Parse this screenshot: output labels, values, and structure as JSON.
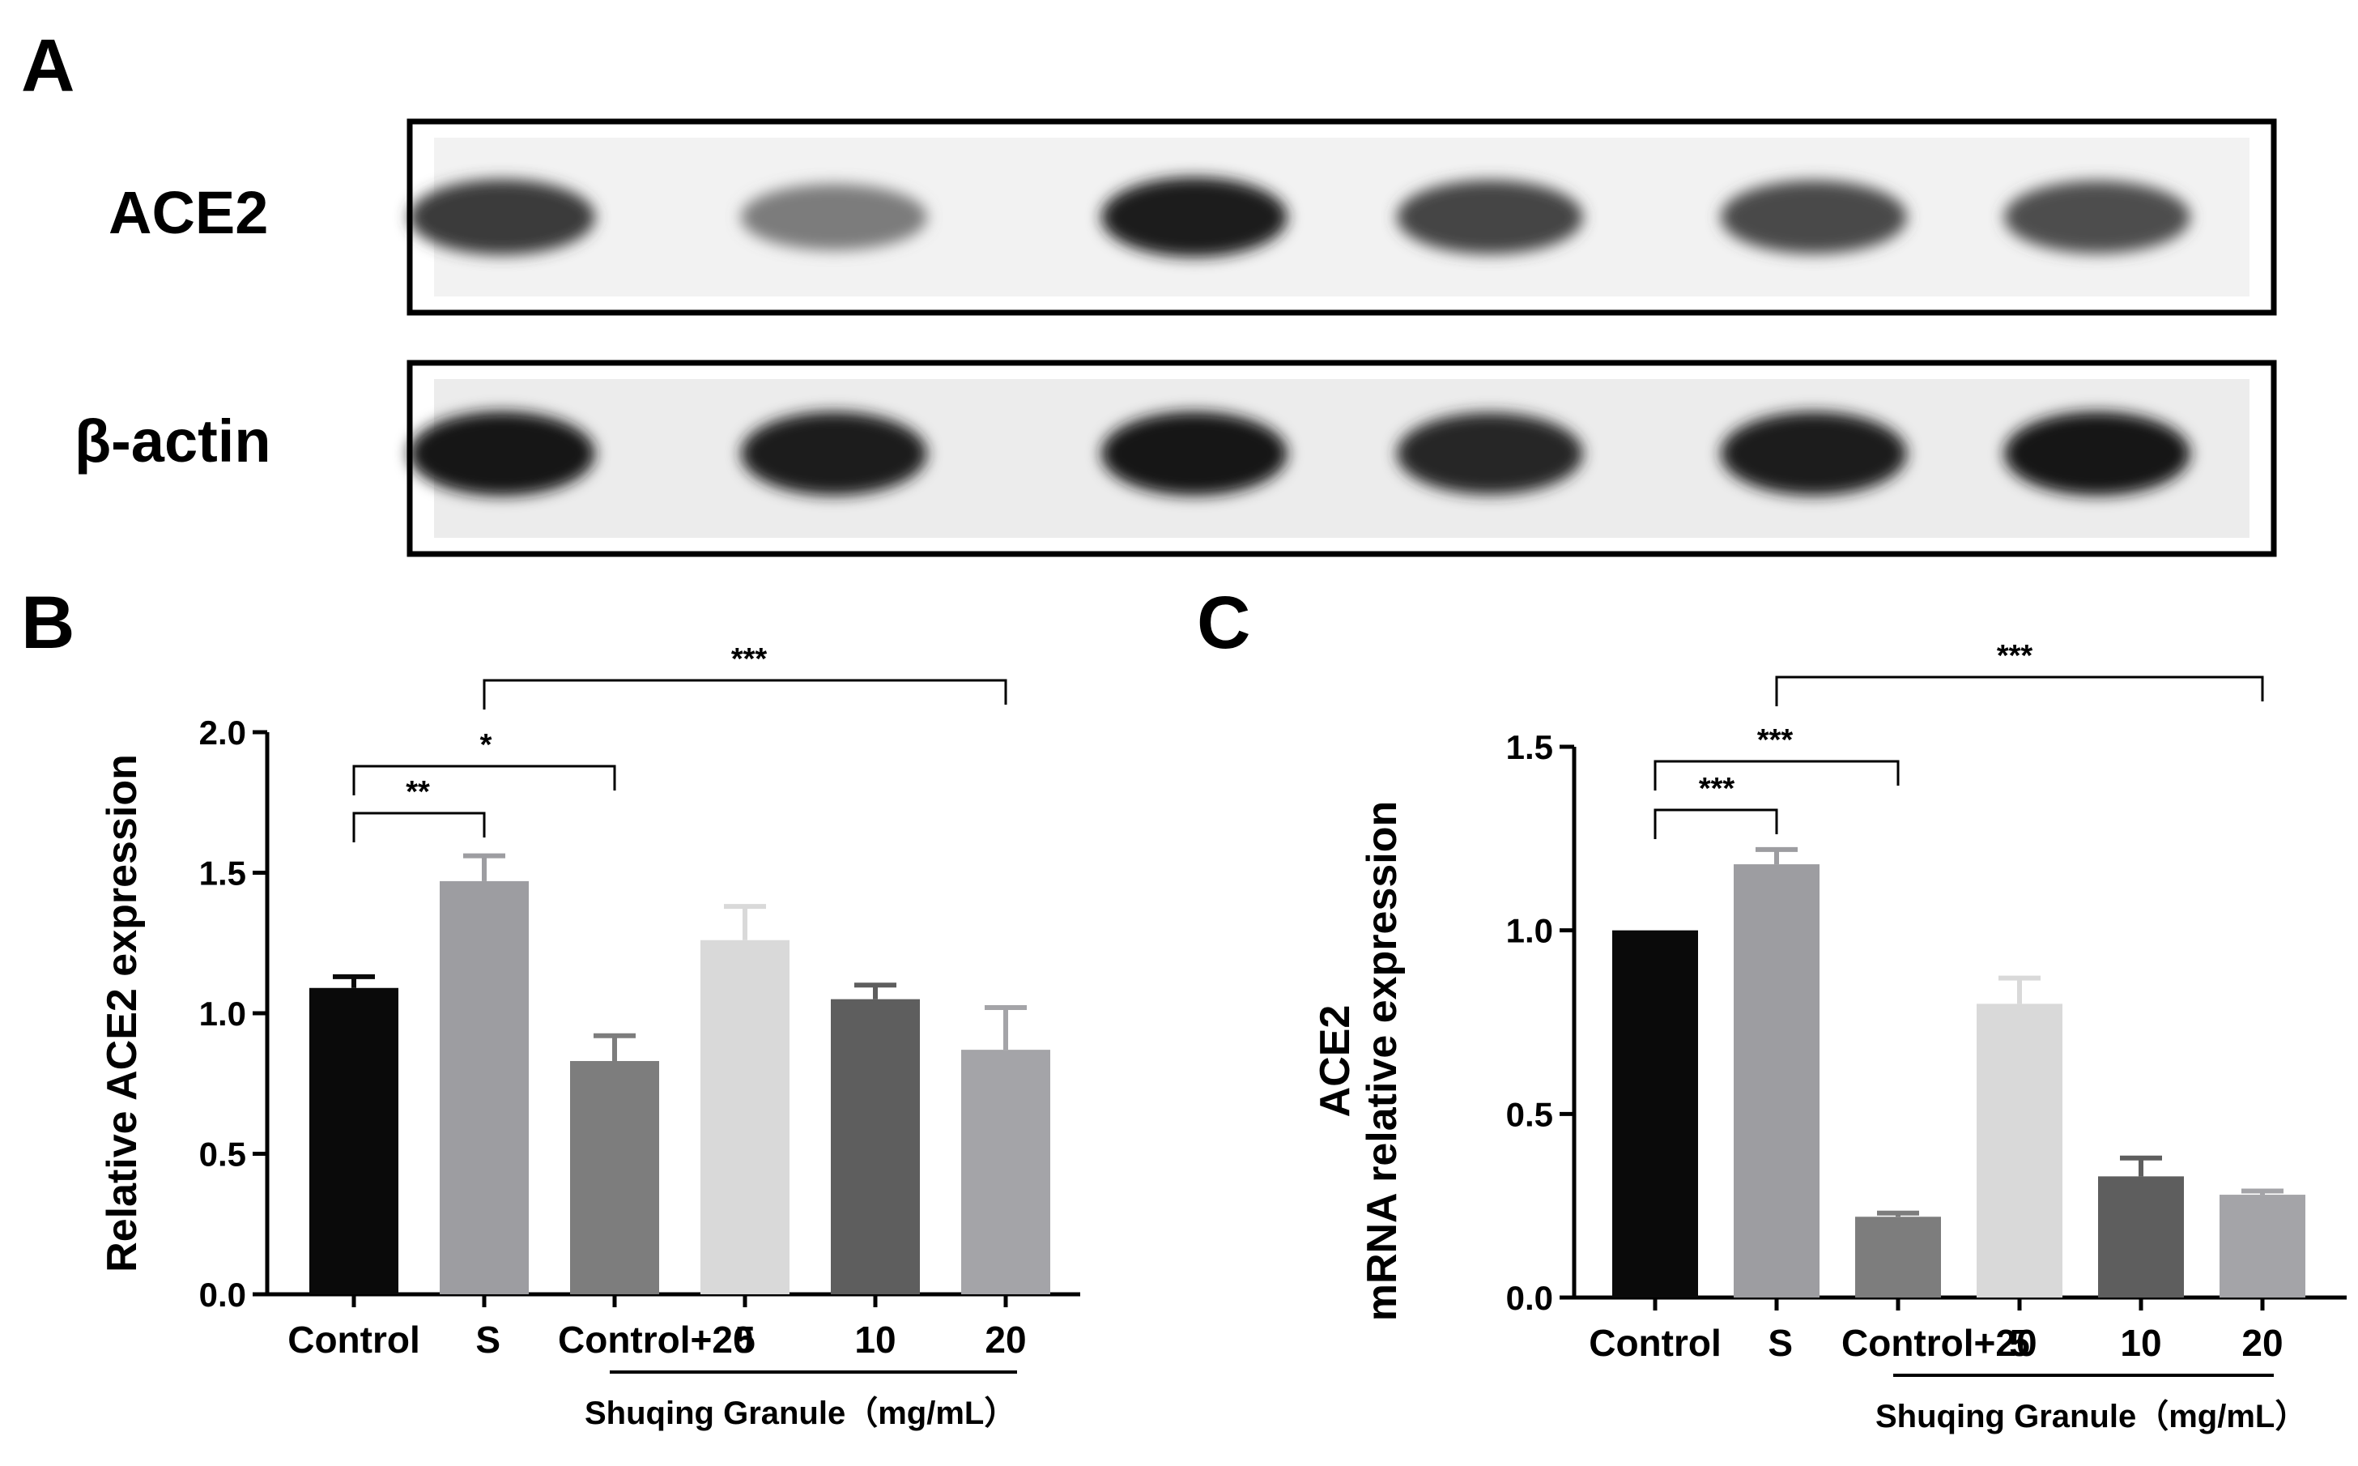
{
  "panels": {
    "a": "A",
    "b": "B",
    "c": "C"
  },
  "blot": {
    "rows": [
      {
        "label": "ACE2",
        "band_intensity": [
          0.82,
          0.55,
          0.95,
          0.78,
          0.76,
          0.74
        ]
      },
      {
        "label": "β-actin",
        "band_intensity": [
          0.97,
          0.95,
          0.96,
          0.9,
          0.95,
          0.96
        ]
      }
    ]
  },
  "chart_data": [
    {
      "type": "bar",
      "panel": "B",
      "categories": [
        "Control",
        "S",
        "Control+20",
        "5",
        "10",
        "20"
      ],
      "values": [
        1.09,
        1.47,
        0.83,
        1.26,
        1.05,
        0.87
      ],
      "errors": [
        0.04,
        0.09,
        0.09,
        0.12,
        0.05,
        0.15
      ],
      "colors": [
        "#0a0a0a",
        "#9d9da1",
        "#7d7d7d",
        "#d9d9d9",
        "#5e5e5e",
        "#a4a4a8"
      ],
      "ylabel": "Relative ACE2 expression",
      "ylim": [
        0,
        2.0
      ],
      "yticks": [
        "0.0",
        "0.5",
        "1.0",
        "1.5",
        "2.0"
      ],
      "group_label": "Shuqing Granule（mg/mL）",
      "significance": [
        {
          "from": 0,
          "to": 1,
          "label": "**"
        },
        {
          "from": 0,
          "to": 2,
          "label": "*"
        },
        {
          "from": 1,
          "to": 5,
          "label": "***"
        }
      ]
    },
    {
      "type": "bar",
      "panel": "C",
      "categories": [
        "Control",
        "S",
        "Control+20",
        "5",
        "10",
        "20"
      ],
      "values": [
        1.0,
        1.18,
        0.22,
        0.8,
        0.33,
        0.28
      ],
      "errors": [
        0.0,
        0.04,
        0.01,
        0.07,
        0.05,
        0.01
      ],
      "colors": [
        "#0a0a0a",
        "#9d9da1",
        "#7d7d7d",
        "#d9d9d9",
        "#5e5e5e",
        "#a4a4a8"
      ],
      "ylabel_lines": [
        "ACE2",
        "mRNA relative expression"
      ],
      "ylim": [
        0,
        1.5
      ],
      "yticks": [
        "0.0",
        "0.5",
        "1.0",
        "1.5"
      ],
      "group_label": "Shuqing Granule（mg/mL）",
      "significance": [
        {
          "from": 0,
          "to": 1,
          "label": "***"
        },
        {
          "from": 0,
          "to": 2,
          "label": "***"
        },
        {
          "from": 1,
          "to": 5,
          "label": "***"
        }
      ]
    }
  ]
}
